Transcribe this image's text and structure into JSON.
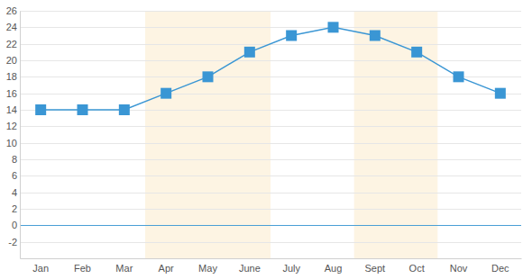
{
  "chart_data": {
    "type": "line",
    "categories": [
      "Jan",
      "Feb",
      "Mar",
      "Apr",
      "May",
      "June",
      "July",
      "Aug",
      "Sept",
      "Oct",
      "Nov",
      "Dec"
    ],
    "values": [
      14,
      14,
      14,
      16,
      18,
      21,
      23,
      24,
      23,
      21,
      18,
      16
    ],
    "color": "#3a96d4",
    "marker": "square",
    "line_style": "solid",
    "ylim": [
      -4,
      26
    ],
    "yticks": [
      -2,
      0,
      2,
      4,
      6,
      8,
      10,
      12,
      14,
      16,
      18,
      20,
      22,
      24,
      26
    ],
    "grid": true,
    "bands": [
      {
        "from": "Apr",
        "to": "June"
      },
      {
        "from": "Sept",
        "to": "Oct"
      }
    ]
  }
}
